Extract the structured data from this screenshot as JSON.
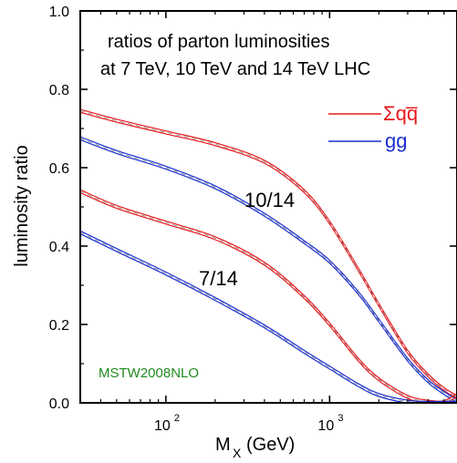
{
  "chart_data": {
    "type": "line",
    "annotation_title": [
      "ratios of parton luminosities",
      "at 7 TeV, 10 TeV and 14 TeV LHC"
    ],
    "xlabel": "M",
    "xlabel_sub": "X",
    "xlabel_unit": "(GeV)",
    "ylabel": "luminosity ratio",
    "xscale": "log",
    "xlim": [
      30,
      6000
    ],
    "ylim": [
      0.0,
      1.0
    ],
    "x_ticks": [
      {
        "base": "10",
        "exp": "2",
        "value": 100
      },
      {
        "base": "10",
        "exp": "3",
        "value": 1000
      }
    ],
    "y_ticks": [
      "0.0",
      "0.2",
      "0.4",
      "0.6",
      "0.8",
      "1.0"
    ],
    "grid": false,
    "legend_position": "top-right",
    "legend": [
      {
        "label": "Σqq̅",
        "color": "#e8191c"
      },
      {
        "label": "gg",
        "color": "#1a2fd0"
      }
    ],
    "curve_labels": [
      {
        "text": "10/14",
        "x": 500,
        "y": 0.6
      },
      {
        "text": "7/14",
        "x": 260,
        "y": 0.385
      }
    ],
    "watermark": {
      "text": "MSTW2008NLO",
      "color": "#1f8a1f"
    },
    "series": [
      {
        "name": "Σqq̅",
        "group": "10/14",
        "color": "#e8191c",
        "x": [
          30,
          50,
          100,
          200,
          400,
          700,
          1000,
          1500,
          2000,
          3000,
          4000,
          5000,
          6000
        ],
        "y": [
          0.745,
          0.72,
          0.69,
          0.66,
          0.615,
          0.54,
          0.46,
          0.34,
          0.25,
          0.13,
          0.07,
          0.035,
          0.015
        ]
      },
      {
        "name": "gg",
        "group": "10/14",
        "color": "#1a2fd0",
        "x": [
          30,
          50,
          100,
          200,
          400,
          700,
          1000,
          1500,
          2000,
          3000,
          4000,
          5000,
          6000
        ],
        "y": [
          0.675,
          0.64,
          0.6,
          0.55,
          0.48,
          0.41,
          0.36,
          0.28,
          0.21,
          0.11,
          0.055,
          0.025,
          0.005
        ]
      },
      {
        "name": "Σqq̅",
        "group": "7/14",
        "color": "#e8191c",
        "x": [
          30,
          50,
          100,
          200,
          400,
          700,
          1000,
          1500,
          2000,
          3000,
          4000,
          5000,
          6000
        ],
        "y": [
          0.54,
          0.5,
          0.46,
          0.42,
          0.355,
          0.27,
          0.2,
          0.11,
          0.06,
          0.015,
          0.003,
          0.002,
          0.02
        ]
      },
      {
        "name": "gg",
        "group": "7/14",
        "color": "#1a2fd0",
        "x": [
          30,
          50,
          100,
          200,
          400,
          700,
          1000,
          1500,
          2000,
          3000,
          4000,
          5000,
          6000
        ],
        "y": [
          0.435,
          0.39,
          0.33,
          0.265,
          0.195,
          0.13,
          0.09,
          0.045,
          0.02,
          0.003,
          0.0,
          0.0,
          0.0
        ]
      }
    ]
  }
}
